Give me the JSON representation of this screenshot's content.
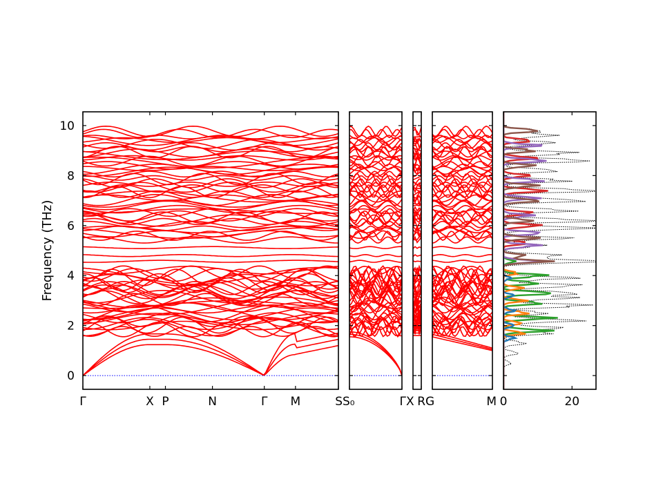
{
  "chart_data": {
    "type": "line",
    "ylabel": "Frequency (THz)",
    "ylim": [
      -0.55,
      10.55
    ],
    "yticks": [
      0,
      2,
      4,
      6,
      8,
      10
    ],
    "colors": {
      "bands": "#ff0000",
      "zero_line": "#0000ff",
      "total_dos": "#000000",
      "pdos": [
        "#1f77b4",
        "#ff7f0e",
        "#2ca02c",
        "#d62728",
        "#9467bd",
        "#8c564b"
      ]
    },
    "band_structure": {
      "segments": [
        {
          "labels": [
            "Γ",
            "X",
            "P",
            "N",
            "Γ",
            "M",
            "S"
          ],
          "positions": [
            0,
            0.262,
            0.323,
            0.507,
            0.71,
            0.832,
            1.0
          ]
        },
        {
          "labels": [
            "S₀",
            "Γ"
          ],
          "positions": [
            0,
            1.0
          ]
        },
        {
          "labels": [
            "X",
            "R"
          ],
          "positions": [
            0,
            1.0
          ]
        },
        {
          "labels": [
            "G",
            "M"
          ],
          "positions": [
            0,
            1.0
          ]
        }
      ],
      "acoustic_top_THz": 1.65,
      "gap_branches_THz": [
        4.57,
        4.8,
        5.12
      ],
      "optical_band_ranges_THz": [
        [
          1.6,
          4.4
        ],
        [
          5.1,
          9.95
        ]
      ]
    },
    "dos": {
      "xlim": [
        0,
        27
      ],
      "xticks": [
        0,
        20
      ],
      "total_peaks": [
        {
          "f": 0.5,
          "v": 2
        },
        {
          "f": 0.9,
          "v": 4
        },
        {
          "f": 1.3,
          "v": 6
        },
        {
          "f": 1.7,
          "v": 13
        },
        {
          "f": 1.9,
          "v": 15
        },
        {
          "f": 2.2,
          "v": 20
        },
        {
          "f": 2.5,
          "v": 12
        },
        {
          "f": 2.8,
          "v": 24
        },
        {
          "f": 3.1,
          "v": 18
        },
        {
          "f": 3.3,
          "v": 20
        },
        {
          "f": 3.6,
          "v": 21
        },
        {
          "f": 3.9,
          "v": 19
        },
        {
          "f": 4.57,
          "v": 27
        },
        {
          "f": 4.8,
          "v": 15
        },
        {
          "f": 5.2,
          "v": 11
        },
        {
          "f": 5.5,
          "v": 17
        },
        {
          "f": 5.9,
          "v": 23
        },
        {
          "f": 6.2,
          "v": 25
        },
        {
          "f": 6.6,
          "v": 19
        },
        {
          "f": 7.0,
          "v": 22
        },
        {
          "f": 7.4,
          "v": 26
        },
        {
          "f": 7.8,
          "v": 18
        },
        {
          "f": 8.2,
          "v": 15
        },
        {
          "f": 8.6,
          "v": 24
        },
        {
          "f": 8.9,
          "v": 20
        },
        {
          "f": 9.3,
          "v": 14
        },
        {
          "f": 9.6,
          "v": 13
        },
        {
          "f": 9.8,
          "v": 10
        }
      ],
      "partial": [
        {
          "color_index": 2,
          "peaks": [
            {
              "f": 1.8,
              "v": 12
            },
            {
              "f": 2.3,
              "v": 13
            },
            {
              "f": 2.9,
              "v": 11
            },
            {
              "f": 3.3,
              "v": 14
            },
            {
              "f": 3.7,
              "v": 10
            },
            {
              "f": 4.0,
              "v": 12
            },
            {
              "f": 4.57,
              "v": 3
            }
          ]
        },
        {
          "color_index": 1,
          "peaks": [
            {
              "f": 1.7,
              "v": 6
            },
            {
              "f": 2.1,
              "v": 5
            },
            {
              "f": 2.5,
              "v": 7
            },
            {
              "f": 3.0,
              "v": 6
            },
            {
              "f": 3.5,
              "v": 5
            },
            {
              "f": 4.1,
              "v": 4
            }
          ]
        },
        {
          "color_index": 0,
          "peaks": [
            {
              "f": 1.5,
              "v": 3
            },
            {
              "f": 2.0,
              "v": 3
            },
            {
              "f": 2.6,
              "v": 3
            },
            {
              "f": 3.2,
              "v": 3
            },
            {
              "f": 3.9,
              "v": 2
            }
          ]
        },
        {
          "color_index": 3,
          "peaks": [
            {
              "f": 4.57,
              "v": 11
            },
            {
              "f": 5.3,
              "v": 7
            },
            {
              "f": 6.0,
              "v": 10
            },
            {
              "f": 6.5,
              "v": 9
            },
            {
              "f": 7.4,
              "v": 12
            },
            {
              "f": 8.0,
              "v": 7
            },
            {
              "f": 8.7,
              "v": 9
            },
            {
              "f": 9.4,
              "v": 8
            }
          ]
        },
        {
          "color_index": 4,
          "peaks": [
            {
              "f": 4.57,
              "v": 10
            },
            {
              "f": 5.2,
              "v": 10
            },
            {
              "f": 5.7,
              "v": 11
            },
            {
              "f": 6.4,
              "v": 8
            },
            {
              "f": 7.1,
              "v": 9
            },
            {
              "f": 7.8,
              "v": 11
            },
            {
              "f": 8.6,
              "v": 12
            },
            {
              "f": 9.2,
              "v": 10
            }
          ]
        },
        {
          "color_index": 5,
          "peaks": [
            {
              "f": 4.57,
              "v": 12
            },
            {
              "f": 4.8,
              "v": 6
            },
            {
              "f": 5.5,
              "v": 9
            },
            {
              "f": 6.2,
              "v": 8
            },
            {
              "f": 7.0,
              "v": 10
            },
            {
              "f": 7.6,
              "v": 9
            },
            {
              "f": 8.4,
              "v": 8
            },
            {
              "f": 9.0,
              "v": 9
            },
            {
              "f": 9.8,
              "v": 10
            }
          ]
        }
      ]
    }
  }
}
